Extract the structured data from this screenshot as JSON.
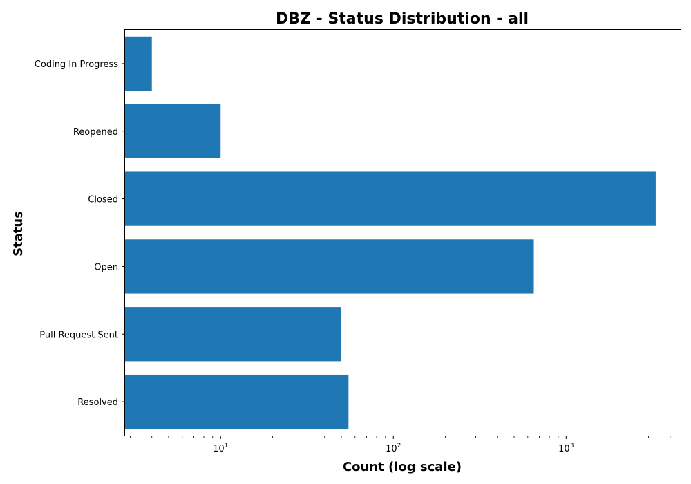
{
  "chart_data": {
    "type": "bar",
    "orientation": "horizontal",
    "title": "DBZ - Status Distribution - all",
    "xlabel": "Count (log scale)",
    "ylabel": "Status",
    "x_scale": "log",
    "xlim": [
      2.8,
      4600
    ],
    "grid": false,
    "categories": [
      "Coding In Progress",
      "Reopened",
      "Closed",
      "Open",
      "Pull Request Sent",
      "Resolved"
    ],
    "values": [
      4,
      10,
      3300,
      650,
      50,
      55
    ],
    "x_ticks": [
      {
        "value": 10,
        "base": "10",
        "exp": "1"
      },
      {
        "value": 100,
        "base": "10",
        "exp": "2"
      },
      {
        "value": 1000,
        "base": "10",
        "exp": "3"
      }
    ],
    "colors": {
      "bar": "#1f77b4"
    }
  }
}
